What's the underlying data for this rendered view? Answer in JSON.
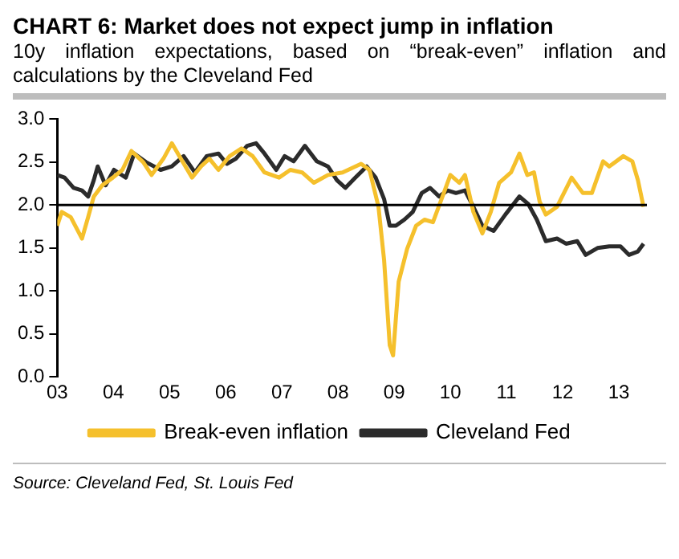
{
  "chart_data": {
    "type": "line",
    "title": "CHART 6: Market does not expect jump in inflation",
    "subtitle": "10y inflation expectations, based on “break-even” inflation and calculations by the Cleveland Fed",
    "annotations": [
      "Source: Cleveland Fed, St. Louis Fed"
    ],
    "series": [
      {
        "name": "Break-even inflation",
        "color": "#f5c02c",
        "x": [
          2003.0,
          2003.08,
          2003.24,
          2003.44,
          2003.55,
          2003.65,
          2003.8,
          2003.99,
          2004.16,
          2004.32,
          2004.53,
          2004.68,
          2004.89,
          2005.04,
          2005.2,
          2005.4,
          2005.56,
          2005.71,
          2005.87,
          2006.07,
          2006.28,
          2006.48,
          2006.69,
          2006.95,
          2007.15,
          2007.36,
          2007.57,
          2007.82,
          2008.08,
          2008.41,
          2008.56,
          2008.72,
          2008.82,
          2008.92,
          2008.98,
          2009.08,
          2009.23,
          2009.39,
          2009.54,
          2009.69,
          2009.9,
          2010.0,
          2010.16,
          2010.26,
          2010.41,
          2010.57,
          2010.72,
          2010.87,
          2011.08,
          2011.23,
          2011.37,
          2011.49,
          2011.59,
          2011.7,
          2011.9,
          2012.16,
          2012.36,
          2012.52,
          2012.72,
          2012.83,
          2013.08,
          2013.24,
          2013.34,
          2013.44
        ],
        "values": [
          1.76,
          1.92,
          1.86,
          1.61,
          1.86,
          2.1,
          2.23,
          2.32,
          2.41,
          2.63,
          2.5,
          2.35,
          2.54,
          2.72,
          2.54,
          2.32,
          2.45,
          2.54,
          2.41,
          2.57,
          2.66,
          2.57,
          2.38,
          2.32,
          2.41,
          2.38,
          2.26,
          2.35,
          2.38,
          2.48,
          2.41,
          1.98,
          1.36,
          0.37,
          0.25,
          1.11,
          1.49,
          1.76,
          1.83,
          1.8,
          2.17,
          2.35,
          2.26,
          2.35,
          1.92,
          1.67,
          1.92,
          2.26,
          2.38,
          2.6,
          2.35,
          2.38,
          2.04,
          1.89,
          1.98,
          2.32,
          2.14,
          2.14,
          2.51,
          2.45,
          2.57,
          2.51,
          2.29,
          1.98
        ]
      },
      {
        "name": "Cleveland Fed",
        "color": "#2b2b2b",
        "x": [
          2003.0,
          2003.13,
          2003.29,
          2003.44,
          2003.55,
          2003.65,
          2003.72,
          2003.86,
          2004.01,
          2004.22,
          2004.37,
          2004.58,
          2004.84,
          2005.04,
          2005.25,
          2005.45,
          2005.66,
          2005.87,
          2006.02,
          2006.18,
          2006.38,
          2006.54,
          2006.69,
          2006.9,
          2007.05,
          2007.21,
          2007.41,
          2007.62,
          2007.82,
          2007.98,
          2008.13,
          2008.31,
          2008.51,
          2008.67,
          2008.82,
          2008.92,
          2009.03,
          2009.18,
          2009.33,
          2009.49,
          2009.64,
          2009.8,
          2009.95,
          2010.1,
          2010.26,
          2010.41,
          2010.57,
          2010.77,
          2010.98,
          2011.23,
          2011.39,
          2011.54,
          2011.7,
          2011.9,
          2012.06,
          2012.26,
          2012.41,
          2012.62,
          2012.83,
          2013.03,
          2013.18,
          2013.34,
          2013.44
        ],
        "values": [
          2.35,
          2.32,
          2.2,
          2.17,
          2.1,
          2.29,
          2.45,
          2.23,
          2.41,
          2.32,
          2.6,
          2.5,
          2.41,
          2.45,
          2.57,
          2.38,
          2.57,
          2.6,
          2.48,
          2.54,
          2.69,
          2.72,
          2.6,
          2.41,
          2.57,
          2.51,
          2.69,
          2.51,
          2.45,
          2.29,
          2.2,
          2.32,
          2.45,
          2.32,
          2.07,
          1.76,
          1.76,
          1.83,
          1.92,
          2.14,
          2.2,
          2.1,
          2.17,
          2.14,
          2.17,
          1.98,
          1.76,
          1.7,
          1.89,
          2.1,
          2.01,
          1.83,
          1.58,
          1.61,
          1.55,
          1.58,
          1.42,
          1.5,
          1.52,
          1.52,
          1.42,
          1.46,
          1.55
        ]
      }
    ],
    "xlim": [
      2003,
      2013.5
    ],
    "xticks": [
      {
        "value": 2003,
        "label": "03"
      },
      {
        "value": 2004,
        "label": "04"
      },
      {
        "value": 2005,
        "label": "05"
      },
      {
        "value": 2006,
        "label": "06"
      },
      {
        "value": 2007,
        "label": "07"
      },
      {
        "value": 2008,
        "label": "08"
      },
      {
        "value": 2009,
        "label": "09"
      },
      {
        "value": 2010,
        "label": "10"
      },
      {
        "value": 2011,
        "label": "11"
      },
      {
        "value": 2012,
        "label": "12"
      },
      {
        "value": 2013,
        "label": "13"
      }
    ],
    "ylim": [
      0,
      3
    ],
    "yticks": [
      {
        "value": 0,
        "label": "0.0"
      },
      {
        "value": 0.5,
        "label": "0.5"
      },
      {
        "value": 1,
        "label": "1.0"
      },
      {
        "value": 1.5,
        "label": "1.5"
      },
      {
        "value": 2,
        "label": "2.0"
      },
      {
        "value": 2.5,
        "label": "2.5"
      },
      {
        "value": 3,
        "label": "3.0"
      }
    ],
    "ref_lines": [
      {
        "axis": "y",
        "value": 2,
        "color": "#000000"
      }
    ],
    "grid": false,
    "legend": "bottom",
    "marker": "none",
    "line_style": "solid"
  }
}
